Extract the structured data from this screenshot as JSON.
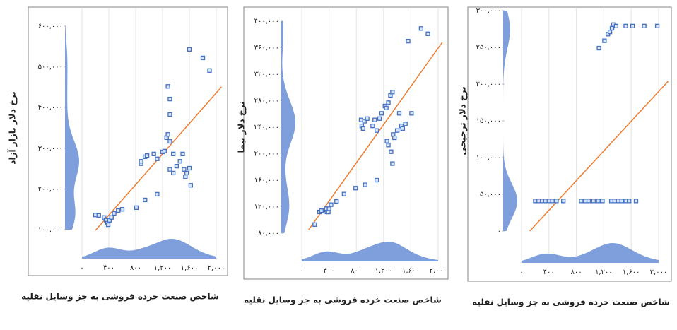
{
  "chart_data": [
    {
      "type": "scatter",
      "ylabel": "نرخ دلار بازار آزاد",
      "xlabel": "شاخص صنعت خرده فروشی به جز وسایل نقلیه",
      "color": "#4472c4",
      "density_color": "#7f9fdc",
      "x": [
        200,
        250,
        330,
        360,
        380,
        390,
        410,
        440,
        480,
        540,
        600,
        810,
        940,
        1120,
        880,
        880,
        940,
        970,
        1070,
        1120,
        1200,
        1230,
        1260,
        1280,
        1310,
        1310,
        1310,
        1280,
        1360,
        1310,
        1360,
        1410,
        1460,
        1500,
        1520,
        1540,
        1560,
        1600,
        1620,
        1600,
        1800,
        1900
      ],
      "values": [
        136000,
        135000,
        130000,
        123000,
        116000,
        112000,
        123000,
        130000,
        140000,
        147000,
        150000,
        154000,
        173000,
        187000,
        262000,
        268000,
        279000,
        282000,
        286000,
        274000,
        291000,
        293000,
        326000,
        334000,
        317000,
        383000,
        421000,
        452000,
        286000,
        248000,
        239000,
        256000,
        268000,
        286000,
        248000,
        230000,
        239000,
        251000,
        209000,
        543000,
        522000,
        491000
      ],
      "trend": {
        "x": [
          200,
          2080
        ],
        "values": [
          98000,
          451000
        ],
        "color": "#ed7d31"
      },
      "xlim": [
        0,
        2000
      ],
      "ylim": [
        100000,
        600000
      ],
      "xticks": [
        {
          "value": 0,
          "label": "۰"
        },
        {
          "value": 400,
          "label": "۴۰۰"
        },
        {
          "value": 800,
          "label": "۸۰۰"
        },
        {
          "value": 1200,
          "label": "۱,۲۰۰"
        },
        {
          "value": 1600,
          "label": "۱,۶۰۰"
        },
        {
          "value": 2000,
          "label": "۲,۰۰۰"
        }
      ],
      "yticks": [
        {
          "value": 100000,
          "label": "۱۰۰,۰۰۰"
        },
        {
          "value": 200000,
          "label": "۲۰۰,۰۰۰"
        },
        {
          "value": 300000,
          "label": "۳۰۰,۰۰۰"
        },
        {
          "value": 400000,
          "label": "۴۰۰,۰۰۰"
        },
        {
          "value": 500000,
          "label": "۵۰۰,۰۰۰"
        },
        {
          "value": 600000,
          "label": "۶۰۰,۰۰۰"
        }
      ],
      "grid": true
    },
    {
      "type": "scatter",
      "ylabel": "نرخ دلار نیما",
      "xlabel": "شاخص صنعت خرده فروشی به جز وسایل نقلیه",
      "color": "#4472c4",
      "density_color": "#7f9fdc",
      "x": [
        190,
        260,
        290,
        340,
        360,
        370,
        390,
        400,
        430,
        510,
        620,
        790,
        930,
        1100,
        870,
        880,
        900,
        920,
        960,
        1040,
        1070,
        1100,
        1140,
        1170,
        1220,
        1240,
        1270,
        1300,
        1330,
        1250,
        1270,
        1310,
        1340,
        1360,
        1400,
        1430,
        1460,
        1480,
        1520,
        1610,
        1330,
        1560,
        1750,
        1850
      ],
      "values": [
        93000,
        112000,
        114000,
        115000,
        117000,
        112000,
        112000,
        117000,
        123000,
        128000,
        139000,
        148000,
        153000,
        160000,
        251000,
        242000,
        238000,
        249000,
        253000,
        242000,
        251000,
        235000,
        253000,
        261000,
        272000,
        269000,
        277000,
        288000,
        293000,
        219000,
        213000,
        203000,
        229000,
        224000,
        235000,
        261000,
        242000,
        238000,
        245000,
        261000,
        185000,
        370000,
        389000,
        381000
      ],
      "trend": {
        "x": [
          100,
          2060
        ],
        "values": [
          85000,
          368000
        ],
        "color": "#ed7d31"
      },
      "xlim": [
        0,
        2000
      ],
      "ylim": [
        80000,
        400000
      ],
      "xticks": [
        {
          "value": 0,
          "label": "۰"
        },
        {
          "value": 400,
          "label": "۴۰۰"
        },
        {
          "value": 800,
          "label": "۸۰۰"
        },
        {
          "value": 1200,
          "label": "۱,۲۰۰"
        },
        {
          "value": 1600,
          "label": "۱,۶۰۰"
        },
        {
          "value": 2000,
          "label": "۲,۰۰۰"
        }
      ],
      "yticks": [
        {
          "value": 80000,
          "label": "۸۰,۰۰۰"
        },
        {
          "value": 120000,
          "label": "۱۲۰,۰۰۰"
        },
        {
          "value": 160000,
          "label": "۱۶۰,۰۰۰"
        },
        {
          "value": 200000,
          "label": "۲۰۰,۰۰۰"
        },
        {
          "value": 240000,
          "label": "۲۴۰,۰۰۰"
        },
        {
          "value": 280000,
          "label": "۲۸۰,۰۰۰"
        },
        {
          "value": 320000,
          "label": "۳۲۰,۰۰۰"
        },
        {
          "value": 360000,
          "label": "۳۶۰,۰۰۰"
        },
        {
          "value": 400000,
          "label": "۴۰۰,۰۰۰"
        }
      ],
      "grid": true
    },
    {
      "type": "scatter",
      "ylabel": "نرخ دلار ترجیحی",
      "xlabel": "شاخص صنعت خرده فروشی به جز وسایل نقلیه",
      "color": "#4472c4",
      "density_color": "#7f9fdc",
      "x": [
        200,
        250,
        300,
        350,
        400,
        450,
        510,
        610,
        870,
        930,
        980,
        1050,
        1120,
        1180,
        1310,
        1360,
        1410,
        1460,
        1520,
        1570,
        1670,
        1130,
        1210,
        1260,
        1290,
        1320,
        1340,
        1380,
        1520,
        1620,
        1790,
        1980
      ],
      "values": [
        41000,
        41000,
        41000,
        41000,
        41000,
        41000,
        41000,
        41000,
        41000,
        41000,
        41000,
        41000,
        41000,
        41000,
        41000,
        41000,
        41000,
        41000,
        41000,
        41000,
        41000,
        249000,
        259000,
        268000,
        271000,
        276000,
        281000,
        279000,
        279000,
        279000,
        279000,
        279000
      ],
      "trend": {
        "x": [
          120,
          2140
        ],
        "values": [
          0,
          204000
        ],
        "color": "#ed7d31"
      },
      "xlim": [
        0,
        2000
      ],
      "ylim": [
        0,
        300000
      ],
      "xticks": [
        {
          "value": 0,
          "label": "۰"
        },
        {
          "value": 400,
          "label": "۴۰۰"
        },
        {
          "value": 800,
          "label": "۸۰۰"
        },
        {
          "value": 1200,
          "label": "۱,۲۰۰"
        },
        {
          "value": 1600,
          "label": "۱,۶۰۰"
        },
        {
          "value": 2000,
          "label": "۲,۰۰۰"
        }
      ],
      "yticks": [
        {
          "value": 0,
          "label": "۰"
        },
        {
          "value": 50000,
          "label": "۵۰,۰۰۰"
        },
        {
          "value": 100000,
          "label": "۱۰۰,۰۰۰"
        },
        {
          "value": 150000,
          "label": "۱۵۰,۰۰۰"
        },
        {
          "value": 200000,
          "label": "۲۰۰,۰۰۰"
        },
        {
          "value": 250000,
          "label": "۲۵۰,۰۰۰"
        },
        {
          "value": 300000,
          "label": "۳۰۰,۰۰۰"
        }
      ],
      "grid": true
    }
  ]
}
